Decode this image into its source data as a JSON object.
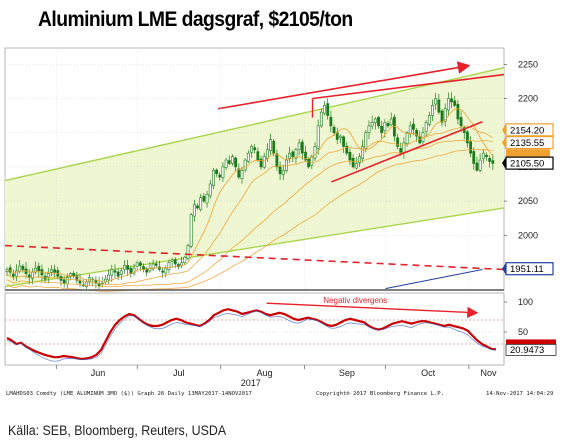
{
  "title": "Aluminium LME dagsgraf, $2105/ton",
  "source": "Källa: SEB, Bloomberg, Reuters, USDA",
  "footer": {
    "left": "LMAHDS03 Comdty (LME ALUMINUM 3MO ($)) Graph 26 Daily 13MAY2017-14NOV2017",
    "copyright": "Copyright® 2017 Bloomberg Finance L.P.",
    "date": "14-Nov-2017 14:04:29"
  },
  "colors": {
    "candle": "#1a7a1a",
    "channel_fill": "#eef7d2",
    "channel_line": "#a8d64a",
    "red": "#e8202a",
    "orange": "#f0a030",
    "blue": "#2040a0",
    "rsi_line": "#cc0000"
  },
  "chart_data": [
    {
      "type": "candlestick",
      "x_axis": {
        "months": [
          "Jun",
          "Jul",
          "Aug",
          "Sep",
          "Oct",
          "Nov"
        ],
        "year_label": "2017",
        "range": [
          "2017-05-13",
          "2017-11-14"
        ]
      },
      "y_axis": {
        "ticks": [
          2000,
          2050,
          2100,
          2150,
          2200,
          2250
        ],
        "range": [
          1920,
          2268
        ],
        "side": "right"
      },
      "price_tags": [
        {
          "value": 2154.2,
          "label": "2154.20",
          "color": "#f0a030"
        },
        {
          "value": 2135.55,
          "label": "2135.55",
          "color": "#f0a030"
        },
        {
          "value": 2120.0,
          "label": "",
          "color": "#f0a030"
        },
        {
          "value": 2105.5,
          "label": "2105.50",
          "color": "#000000"
        },
        {
          "value": 1951.11,
          "label": "1951.11",
          "color": "#2040a0"
        }
      ],
      "close_series": [
        1950,
        1946,
        1940,
        1948,
        1955,
        1950,
        1944,
        1938,
        1946,
        1952,
        1948,
        1942,
        1936,
        1944,
        1950,
        1946,
        1940,
        1934,
        1930,
        1938,
        1944,
        1940,
        1934,
        1930,
        1926,
        1932,
        1938,
        1936,
        1930,
        1926,
        1930,
        1936,
        1942,
        1950,
        1946,
        1940,
        1948,
        1956,
        1950,
        1944,
        1952,
        1960,
        1956,
        1950,
        1946,
        1952,
        1958,
        1956,
        1950,
        1946,
        1952,
        1960,
        1964,
        1958,
        1954,
        1960,
        1968,
        1985,
        2030,
        2045,
        2040,
        2055,
        2050,
        2060,
        2075,
        2095,
        2090,
        2085,
        2100,
        2110,
        2105,
        2115,
        2100,
        2085,
        2095,
        2110,
        2120,
        2130,
        2125,
        2110,
        2100,
        2115,
        2125,
        2140,
        2120,
        2100,
        2090,
        2095,
        2110,
        2120,
        2115,
        2125,
        2135,
        2120,
        2110,
        2100,
        2115,
        2130,
        2160,
        2180,
        2190,
        2175,
        2160,
        2150,
        2140,
        2145,
        2130,
        2120,
        2110,
        2100,
        2105,
        2115,
        2130,
        2150,
        2160,
        2165,
        2170,
        2160,
        2150,
        2165,
        2160,
        2170,
        2145,
        2130,
        2120,
        2135,
        2150,
        2160,
        2155,
        2145,
        2135,
        2150,
        2165,
        2175,
        2190,
        2200,
        2180,
        2165,
        2185,
        2200,
        2195,
        2190,
        2170,
        2160,
        2150,
        2135,
        2120,
        2105,
        2095,
        2110,
        2120,
        2115,
        2108,
        2105
      ],
      "moving_averages": [
        "orange",
        "orange",
        "orange",
        "orange"
      ],
      "trendlines": [
        {
          "name": "",
          "color": "red",
          "style": "solid",
          "arrow": true,
          "start": [
            "2017-07-31",
            2185
          ],
          "end": [
            "2017-11-01",
            2248
          ]
        },
        {
          "name": "",
          "color": "red",
          "style": "solid",
          "start": [
            "2017-09-04",
            2200
          ],
          "end": [
            "2017-11-14",
            2235
          ]
        },
        {
          "name": "",
          "color": "red",
          "style": "solid",
          "start": [
            "2017-09-11",
            2078
          ],
          "end": [
            "2017-11-06",
            2166
          ]
        },
        {
          "name": "",
          "color": "red",
          "style": "dashed",
          "start": [
            "2017-05-13",
            1985
          ],
          "end": [
            "2017-11-14",
            1950
          ]
        },
        {
          "name": "",
          "color": "blue",
          "style": "solid",
          "start": [
            "2017-10-01",
            1922
          ],
          "end": [
            "2017-11-06",
            1950
          ]
        }
      ],
      "channel": {
        "upper": [
          [
            "2017-05-13",
            2080
          ],
          [
            "2017-11-14",
            2245
          ]
        ],
        "lower": [
          [
            "2017-05-13",
            1925
          ],
          [
            "2017-11-14",
            2040
          ]
        ]
      }
    },
    {
      "type": "line",
      "name": "RSI",
      "annotation": "Negativ divergens",
      "y_axis": {
        "ticks": [
          50,
          100
        ],
        "range": [
          0,
          110
        ],
        "side": "right"
      },
      "reference_lines": [
        30,
        70
      ],
      "current_value": 20.9473,
      "current_label": "20.9473",
      "values": [
        40,
        36,
        30,
        32,
        26,
        22,
        18,
        15,
        12,
        10,
        8,
        8,
        10,
        9,
        8,
        6,
        5,
        6,
        8,
        12,
        20,
        35,
        50,
        62,
        70,
        76,
        80,
        78,
        72,
        66,
        62,
        60,
        60,
        62,
        66,
        70,
        72,
        70,
        66,
        64,
        62,
        60,
        64,
        70,
        78,
        82,
        86,
        88,
        86,
        84,
        80,
        82,
        84,
        86,
        84,
        80,
        78,
        80,
        82,
        80,
        76,
        72,
        70,
        72,
        74,
        72,
        70,
        66,
        62,
        60,
        62,
        66,
        70,
        72,
        70,
        68,
        66,
        60,
        56,
        54,
        56,
        60,
        64,
        66,
        68,
        66,
        64,
        66,
        68,
        68,
        66,
        64,
        62,
        60,
        62,
        60,
        58,
        56,
        52,
        44,
        36,
        30,
        26,
        22,
        21
      ]
    }
  ]
}
